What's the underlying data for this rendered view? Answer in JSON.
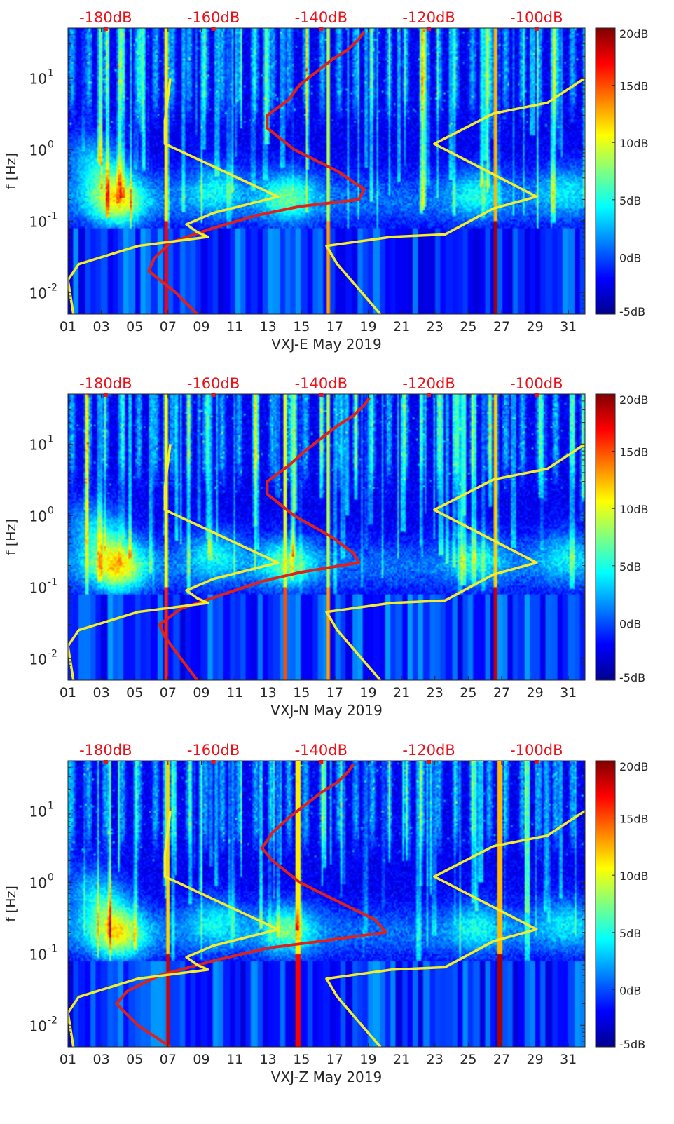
{
  "colors": {
    "top_axis_labels": "#e8121b",
    "median_curve": "#e0201a",
    "noise_model_curves": "#f5ec2a",
    "colormap": [
      "#00008f",
      "#0000ff",
      "#0080ff",
      "#00ffff",
      "#80ff80",
      "#ffff00",
      "#ff8000",
      "#ff0000",
      "#800000"
    ]
  },
  "chart_data": [
    {
      "type": "heatmap",
      "xlabel": "VXJ-E May 2019",
      "ylabel": "f [Hz]",
      "x_ticks": [
        "01",
        "03",
        "05",
        "07",
        "09",
        "11",
        "13",
        "15",
        "17",
        "19",
        "21",
        "23",
        "25",
        "27",
        "29",
        "31"
      ],
      "xlim": [
        1,
        32
      ],
      "y_scale": "log",
      "ylim": [
        0.005,
        50
      ],
      "y_ticks": [
        {
          "value": 0.01,
          "base": "10",
          "exp": "-2"
        },
        {
          "value": 0.1,
          "base": "10",
          "exp": "-1"
        },
        {
          "value": 1,
          "base": "10",
          "exp": "0"
        },
        {
          "value": 10,
          "base": "10",
          "exp": "1"
        }
      ],
      "top_axis": {
        "labels": [
          "-180dB",
          "-160dB",
          "-140dB",
          "-120dB",
          "-100dB"
        ],
        "values": [
          -180,
          -160,
          -140,
          -120,
          -100
        ],
        "range": [
          -187,
          -91
        ]
      },
      "colorbar": {
        "labels": [
          "20dB",
          "15dB",
          "10dB",
          "5dB",
          "0dB",
          "-5dB"
        ],
        "values": [
          20,
          15,
          10,
          5,
          0,
          -5
        ],
        "range": [
          -5,
          20
        ]
      },
      "events": [
        {
          "day": 4.0,
          "f": 0.18,
          "level": 17
        },
        {
          "day": 3.3,
          "f": 0.45,
          "level": 9
        },
        {
          "day": 2.2,
          "f": 0.9,
          "level": 6
        },
        {
          "day": 9.8,
          "f": 0.3,
          "level": 8
        },
        {
          "day": 14.2,
          "f": 0.22,
          "level": 12
        },
        {
          "day": 25.5,
          "f": 0.25,
          "level": 8
        },
        {
          "day": 30.8,
          "f": 0.3,
          "level": 7
        }
      ],
      "spikes": [
        {
          "day": 6.9,
          "level": 17
        },
        {
          "day": 16.6,
          "level": 13
        },
        {
          "day": 26.6,
          "level": 19
        }
      ],
      "series": [
        {
          "name": "",
          "role": "median",
          "points": [
            [
              -163,
              0.005
            ],
            [
              -167,
              0.01
            ],
            [
              -172,
              0.02
            ],
            [
              -171,
              0.03
            ],
            [
              -168,
              0.05
            ],
            [
              -160,
              0.08
            ],
            [
              -152,
              0.12
            ],
            [
              -144,
              0.16
            ],
            [
              -133,
              0.2
            ],
            [
              -132,
              0.28
            ],
            [
              -137,
              0.5
            ],
            [
              -145,
              1.0
            ],
            [
              -150,
              2.0
            ],
            [
              -150,
              3.0
            ],
            [
              -146,
              5.0
            ],
            [
              -144,
              8.0
            ],
            [
              -141,
              12.0
            ],
            [
              -138,
              18.0
            ],
            [
              -135,
              25.0
            ],
            [
              -133,
              35.0
            ],
            [
              -132,
              45.0
            ]
          ]
        },
        {
          "name": "",
          "role": "low-noise model",
          "points": [
            [
              -186,
              0.005
            ],
            [
              -187,
              0.015
            ],
            [
              -185,
              0.025
            ],
            [
              -174,
              0.045
            ],
            [
              -161,
              0.06
            ],
            [
              -163,
              0.07
            ],
            [
              -165,
              0.09
            ],
            [
              -160,
              0.13
            ],
            [
              -148,
              0.22
            ],
            [
              -169,
              1.2
            ],
            [
              -169,
              2.5
            ],
            [
              -168,
              10.0
            ]
          ]
        },
        {
          "name": "",
          "role": "high-noise model",
          "points": [
            [
              -129,
              0.005
            ],
            [
              -137,
              0.025
            ],
            [
              -139,
              0.045
            ],
            [
              -127,
              0.06
            ],
            [
              -117,
              0.065
            ],
            [
              -108,
              0.15
            ],
            [
              -100,
              0.22
            ],
            [
              -119,
              1.2
            ],
            [
              -108,
              3.2
            ],
            [
              -98,
              4.5
            ],
            [
              -91,
              10.0
            ]
          ]
        }
      ]
    },
    {
      "type": "heatmap",
      "xlabel": "VXJ-N May 2019",
      "ylabel": "f [Hz]",
      "x_ticks": [
        "01",
        "03",
        "05",
        "07",
        "09",
        "11",
        "13",
        "15",
        "17",
        "19",
        "21",
        "23",
        "25",
        "27",
        "29",
        "31"
      ],
      "xlim": [
        1,
        32
      ],
      "y_scale": "log",
      "ylim": [
        0.005,
        50
      ],
      "y_ticks": [
        {
          "value": 0.01,
          "base": "10",
          "exp": "-2"
        },
        {
          "value": 0.1,
          "base": "10",
          "exp": "-1"
        },
        {
          "value": 1,
          "base": "10",
          "exp": "0"
        },
        {
          "value": 10,
          "base": "10",
          "exp": "1"
        }
      ],
      "top_axis": {
        "labels": [
          "-180dB",
          "-160dB",
          "-140dB",
          "-120dB",
          "-100dB"
        ],
        "values": [
          -180,
          -160,
          -140,
          -120,
          -100
        ],
        "range": [
          -187,
          -91
        ]
      },
      "colorbar": {
        "labels": [
          "20dB",
          "15dB",
          "10dB",
          "5dB",
          "0dB",
          "-5dB"
        ],
        "values": [
          20,
          15,
          10,
          5,
          0,
          -5
        ],
        "range": [
          -5,
          20
        ]
      },
      "events": [
        {
          "day": 4.0,
          "f": 0.18,
          "level": 18
        },
        {
          "day": 3.3,
          "f": 0.45,
          "level": 9
        },
        {
          "day": 2.2,
          "f": 0.9,
          "level": 6
        },
        {
          "day": 9.8,
          "f": 0.3,
          "level": 8
        },
        {
          "day": 14.2,
          "f": 0.22,
          "level": 12
        },
        {
          "day": 25.5,
          "f": 0.25,
          "level": 8
        },
        {
          "day": 30.8,
          "f": 0.3,
          "level": 7
        }
      ],
      "spikes": [
        {
          "day": 6.9,
          "level": 16
        },
        {
          "day": 14.0,
          "level": 15
        },
        {
          "day": 16.6,
          "level": 13
        },
        {
          "day": 26.6,
          "level": 18
        }
      ],
      "series": [
        {
          "name": "",
          "role": "median",
          "points": [
            [
              -163,
              0.005
            ],
            [
              -166,
              0.01
            ],
            [
              -169,
              0.02
            ],
            [
              -170,
              0.03
            ],
            [
              -166,
              0.05
            ],
            [
              -158,
              0.08
            ],
            [
              -151,
              0.12
            ],
            [
              -144,
              0.16
            ],
            [
              -133,
              0.22
            ],
            [
              -134,
              0.3
            ],
            [
              -138,
              0.5
            ],
            [
              -145,
              1.0
            ],
            [
              -150,
              2.0
            ],
            [
              -150,
              3.0
            ],
            [
              -146,
              5.0
            ],
            [
              -143,
              8.0
            ],
            [
              -140,
              12.0
            ],
            [
              -137,
              18.0
            ],
            [
              -134,
              25.0
            ],
            [
              -132,
              35.0
            ],
            [
              -131,
              45.0
            ]
          ]
        },
        {
          "name": "",
          "role": "low-noise model",
          "points": [
            [
              -186,
              0.005
            ],
            [
              -187,
              0.015
            ],
            [
              -185,
              0.025
            ],
            [
              -174,
              0.045
            ],
            [
              -161,
              0.06
            ],
            [
              -163,
              0.07
            ],
            [
              -165,
              0.09
            ],
            [
              -160,
              0.13
            ],
            [
              -148,
              0.22
            ],
            [
              -169,
              1.2
            ],
            [
              -169,
              2.5
            ],
            [
              -168,
              10.0
            ]
          ]
        },
        {
          "name": "",
          "role": "high-noise model",
          "points": [
            [
              -129,
              0.005
            ],
            [
              -137,
              0.025
            ],
            [
              -139,
              0.045
            ],
            [
              -127,
              0.06
            ],
            [
              -117,
              0.065
            ],
            [
              -108,
              0.15
            ],
            [
              -100,
              0.22
            ],
            [
              -119,
              1.2
            ],
            [
              -108,
              3.2
            ],
            [
              -98,
              4.5
            ],
            [
              -91,
              10.0
            ]
          ]
        }
      ]
    },
    {
      "type": "heatmap",
      "xlabel": "VXJ-Z May 2019",
      "ylabel": "f [Hz]",
      "x_ticks": [
        "01",
        "03",
        "05",
        "07",
        "09",
        "11",
        "13",
        "15",
        "17",
        "19",
        "21",
        "23",
        "25",
        "27",
        "29",
        "31"
      ],
      "xlim": [
        1,
        32
      ],
      "y_scale": "log",
      "ylim": [
        0.005,
        50
      ],
      "y_ticks": [
        {
          "value": 0.01,
          "base": "10",
          "exp": "-2"
        },
        {
          "value": 0.1,
          "base": "10",
          "exp": "-1"
        },
        {
          "value": 1,
          "base": "10",
          "exp": "0"
        },
        {
          "value": 10,
          "base": "10",
          "exp": "1"
        }
      ],
      "top_axis": {
        "labels": [
          "-180dB",
          "-160dB",
          "-140dB",
          "-120dB",
          "-100dB"
        ],
        "values": [
          -180,
          -160,
          -140,
          -120,
          -100
        ],
        "range": [
          -187,
          -91
        ]
      },
      "colorbar": {
        "labels": [
          "20dB",
          "15dB",
          "10dB",
          "5dB",
          "0dB",
          "-5dB"
        ],
        "values": [
          20,
          15,
          10,
          5,
          0,
          -5
        ],
        "range": [
          -5,
          20
        ]
      },
      "events": [
        {
          "day": 4.0,
          "f": 0.18,
          "level": 17
        },
        {
          "day": 3.3,
          "f": 0.45,
          "level": 9
        },
        {
          "day": 2.2,
          "f": 0.9,
          "level": 6
        },
        {
          "day": 9.8,
          "f": 0.3,
          "level": 8
        },
        {
          "day": 14.2,
          "f": 0.22,
          "level": 12
        },
        {
          "day": 25.5,
          "f": 0.25,
          "level": 8
        },
        {
          "day": 30.8,
          "f": 0.3,
          "level": 7
        }
      ],
      "spikes": [
        {
          "day": 7.0,
          "level": 18
        },
        {
          "day": 14.8,
          "level": 17
        },
        {
          "day": 26.9,
          "level": 19
        }
      ],
      "series": [
        {
          "name": "",
          "role": "median",
          "points": [
            [
              -168,
              0.005
            ],
            [
              -174,
              0.01
            ],
            [
              -178,
              0.02
            ],
            [
              -176,
              0.03
            ],
            [
              -170,
              0.05
            ],
            [
              -160,
              0.08
            ],
            [
              -150,
              0.12
            ],
            [
              -140,
              0.15
            ],
            [
              -128,
              0.2
            ],
            [
              -130,
              0.3
            ],
            [
              -136,
              0.5
            ],
            [
              -144,
              1.0
            ],
            [
              -149,
              2.0
            ],
            [
              -151,
              3.0
            ],
            [
              -149,
              5.0
            ],
            [
              -146,
              8.0
            ],
            [
              -143,
              12.0
            ],
            [
              -140,
              18.0
            ],
            [
              -137,
              25.0
            ],
            [
              -135,
              35.0
            ],
            [
              -134,
              45.0
            ]
          ]
        },
        {
          "name": "",
          "role": "low-noise model",
          "points": [
            [
              -186,
              0.005
            ],
            [
              -187,
              0.015
            ],
            [
              -185,
              0.025
            ],
            [
              -174,
              0.045
            ],
            [
              -161,
              0.06
            ],
            [
              -163,
              0.07
            ],
            [
              -165,
              0.09
            ],
            [
              -160,
              0.13
            ],
            [
              -148,
              0.22
            ],
            [
              -169,
              1.2
            ],
            [
              -169,
              2.5
            ],
            [
              -168,
              10.0
            ]
          ]
        },
        {
          "name": "",
          "role": "high-noise model",
          "points": [
            [
              -129,
              0.005
            ],
            [
              -137,
              0.025
            ],
            [
              -139,
              0.045
            ],
            [
              -127,
              0.06
            ],
            [
              -117,
              0.065
            ],
            [
              -108,
              0.15
            ],
            [
              -100,
              0.22
            ],
            [
              -119,
              1.2
            ],
            [
              -108,
              3.2
            ],
            [
              -98,
              4.5
            ],
            [
              -91,
              10.0
            ]
          ]
        }
      ]
    }
  ]
}
